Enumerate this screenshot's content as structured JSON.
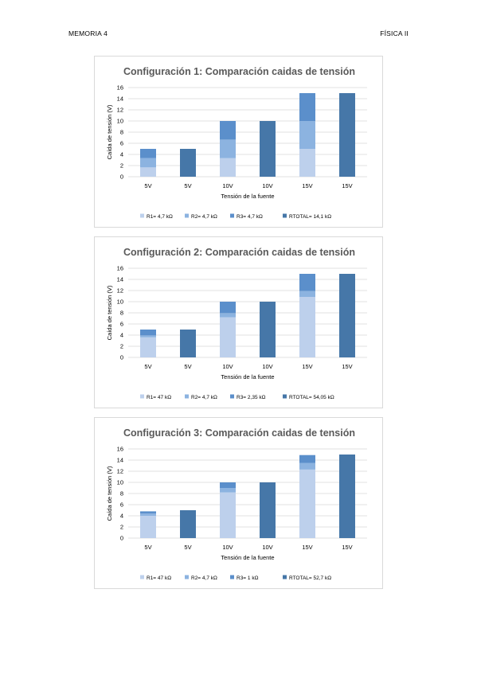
{
  "header": {
    "left": "MEMORIA 4",
    "right": "FÍSICA II"
  },
  "colors": {
    "R1": "#bdd0ec",
    "R2": "#8cb3e0",
    "R3": "#5b8fcb",
    "RTOTAL": "#4677a8",
    "grid": "#d9d9d9"
  },
  "chart_data": [
    {
      "type": "bar",
      "stacked": true,
      "title": "Configuración 1: Comparación caidas de tensión",
      "xlabel": "Tensión de la fuente",
      "ylabel": "Caída de tensión (V)",
      "ylim": [
        0,
        16
      ],
      "yticks": [
        0,
        2,
        4,
        6,
        8,
        10,
        12,
        14,
        16
      ],
      "grid": true,
      "legend_position": "bottom",
      "categories": [
        "5V",
        "5V",
        "10V",
        "10V",
        "15V",
        "15V"
      ],
      "series": [
        {
          "name": "R1= 4,7 kΩ",
          "key": "R1",
          "values": [
            1.67,
            0,
            3.33,
            0,
            5.0,
            0
          ]
        },
        {
          "name": "R2= 4,7 kΩ",
          "key": "R2",
          "values": [
            1.67,
            0,
            3.33,
            0,
            5.0,
            0
          ]
        },
        {
          "name": "R3= 4,7 kΩ",
          "key": "R3",
          "values": [
            1.66,
            0,
            3.34,
            0,
            5.0,
            0
          ]
        },
        {
          "name": "RTOTAL= 14,1 kΩ",
          "key": "RTOTAL",
          "values": [
            0,
            5,
            0,
            10,
            0,
            15
          ]
        }
      ]
    },
    {
      "type": "bar",
      "stacked": true,
      "title": "Configuración 2: Comparación caidas de tensión",
      "xlabel": "Tensión de la fuente",
      "ylabel": "Caída de tensión (V)",
      "ylim": [
        0,
        16
      ],
      "yticks": [
        0,
        2,
        4,
        6,
        8,
        10,
        12,
        14,
        16
      ],
      "grid": true,
      "legend_position": "bottom",
      "categories": [
        "5V",
        "5V",
        "10V",
        "10V",
        "15V",
        "15V"
      ],
      "series": [
        {
          "name": "R1= 47 kΩ",
          "key": "R1",
          "values": [
            3.6,
            0,
            7.2,
            0,
            10.85,
            0
          ]
        },
        {
          "name": "R2= 4,7 kΩ",
          "key": "R2",
          "values": [
            0.35,
            0,
            0.75,
            0,
            1.05,
            0
          ]
        },
        {
          "name": "R3= 2,35 kΩ",
          "key": "R3",
          "values": [
            1.05,
            0,
            2.05,
            0,
            3.1,
            0
          ]
        },
        {
          "name": "RTOTAL= 54,05 kΩ",
          "key": "RTOTAL",
          "values": [
            0,
            5,
            0,
            10,
            0,
            15
          ]
        }
      ]
    },
    {
      "type": "bar",
      "stacked": true,
      "title": "Configuración 3: Comparación caidas de tensión",
      "xlabel": "Tensión de la fuente",
      "ylabel": "Caída de tensión (V)",
      "ylim": [
        0,
        16
      ],
      "yticks": [
        0,
        2,
        4,
        6,
        8,
        10,
        12,
        14,
        16
      ],
      "grid": true,
      "legend_position": "bottom",
      "categories": [
        "5V",
        "5V",
        "10V",
        "10V",
        "15V",
        "15V"
      ],
      "series": [
        {
          "name": "R1= 47 kΩ",
          "key": "R1",
          "values": [
            4.0,
            0,
            8.2,
            0,
            12.3,
            0
          ]
        },
        {
          "name": "R2= 4,7 kΩ",
          "key": "R2",
          "values": [
            0.4,
            0,
            0.8,
            0,
            1.2,
            0
          ]
        },
        {
          "name": "R3= 1 kΩ",
          "key": "R3",
          "values": [
            0.4,
            0,
            1.0,
            0,
            1.4,
            0
          ]
        },
        {
          "name": "RTOTAL= 52,7 kΩ",
          "key": "RTOTAL",
          "values": [
            0,
            5,
            0,
            10,
            0,
            15
          ]
        }
      ]
    }
  ]
}
